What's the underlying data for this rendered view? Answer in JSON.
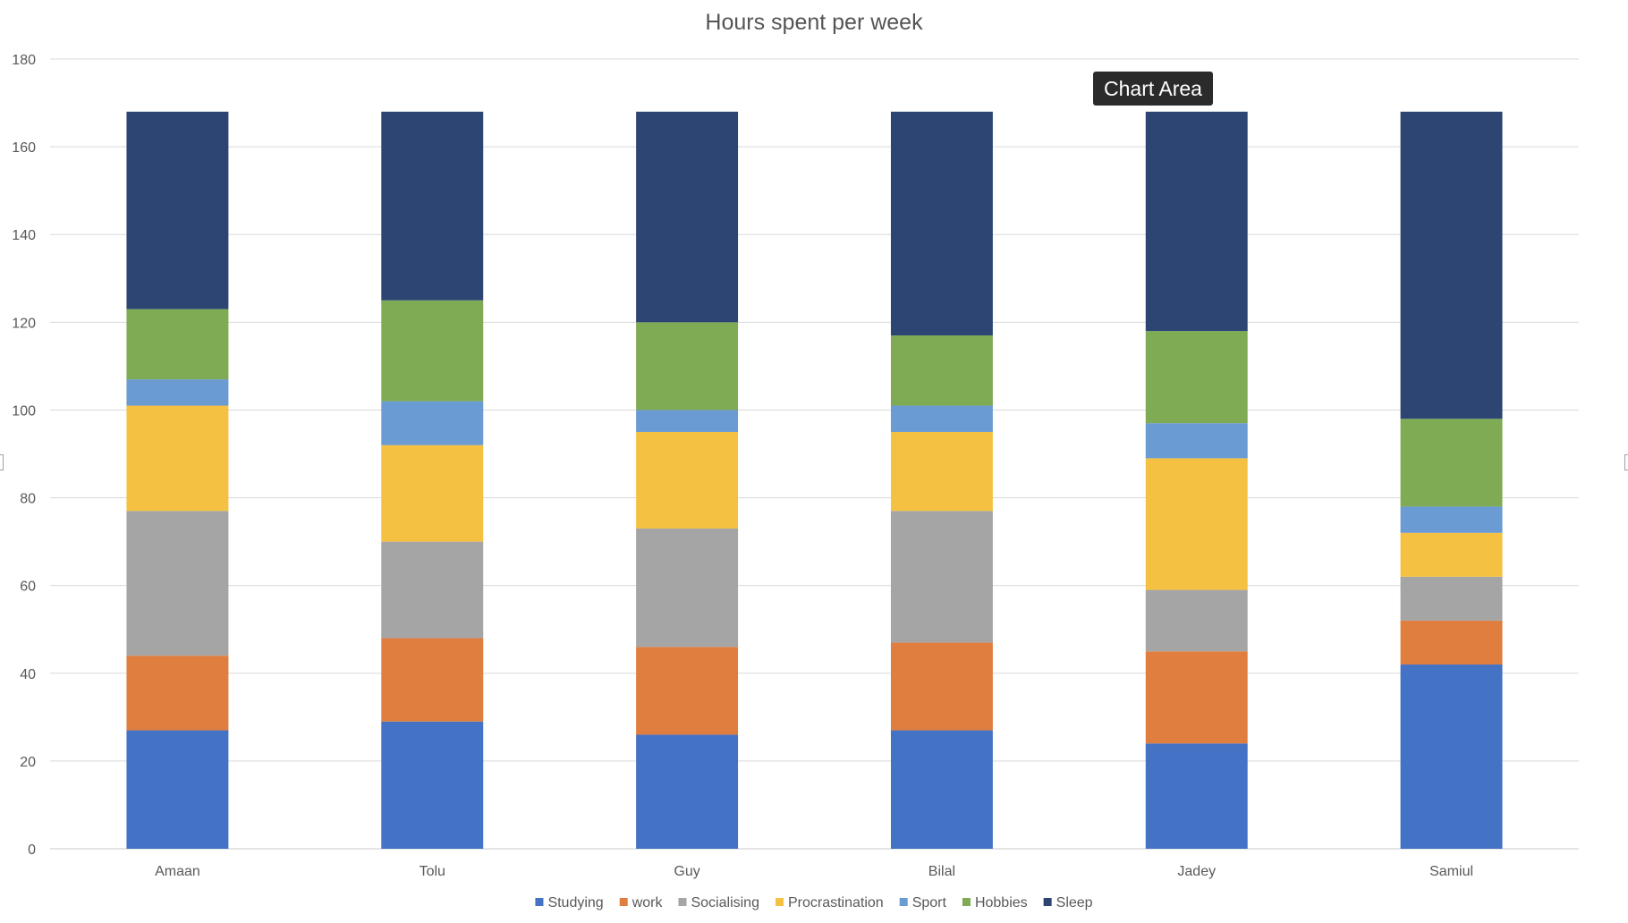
{
  "tooltip": {
    "label": "Chart Area"
  },
  "chart_data": {
    "type": "bar",
    "stacked": true,
    "title": "Hours spent per week",
    "xlabel": "",
    "ylabel": "",
    "categories": [
      "Amaan",
      "Tolu",
      "Guy",
      "Bilal",
      "Jadey",
      "Samiul"
    ],
    "ylim": [
      0,
      180
    ],
    "yticks": [
      0,
      20,
      40,
      60,
      80,
      100,
      120,
      140,
      160,
      180
    ],
    "grid": true,
    "legend_position": "bottom",
    "series": [
      {
        "name": "Studying",
        "color": "#4472C4",
        "values": [
          27,
          29,
          26,
          27,
          24,
          42
        ]
      },
      {
        "name": "work",
        "color": "#E07E3F",
        "values": [
          17,
          19,
          20,
          20,
          21,
          10
        ]
      },
      {
        "name": "Socialising",
        "color": "#A5A5A5",
        "values": [
          33,
          22,
          27,
          30,
          14,
          10
        ]
      },
      {
        "name": "Procrastination",
        "color": "#F5C142",
        "values": [
          24,
          22,
          22,
          18,
          30,
          10
        ]
      },
      {
        "name": "Sport",
        "color": "#6A9BD2",
        "values": [
          6,
          10,
          5,
          6,
          8,
          6
        ]
      },
      {
        "name": "Hobbies",
        "color": "#7FAB54",
        "values": [
          16,
          23,
          20,
          16,
          21,
          20
        ]
      },
      {
        "name": "Sleep",
        "color": "#2C4573",
        "values": [
          45,
          43,
          48,
          51,
          50,
          70
        ]
      }
    ]
  }
}
